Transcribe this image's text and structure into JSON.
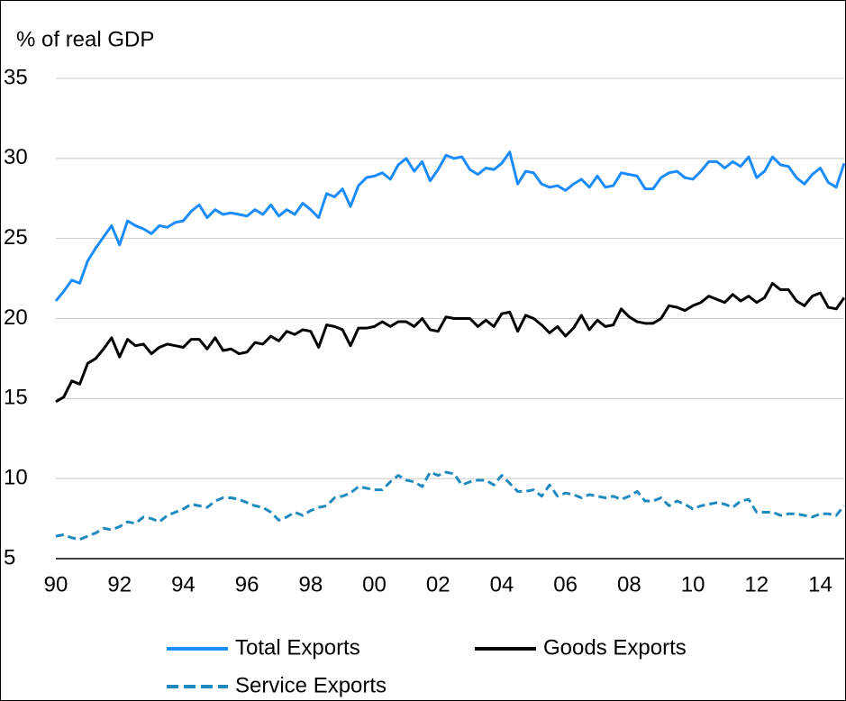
{
  "chart_data": {
    "type": "line",
    "y_axis_title": "% of real GDP",
    "categories": [
      "90",
      null,
      null,
      null,
      null,
      null,
      null,
      null,
      "92",
      null,
      null,
      null,
      null,
      null,
      null,
      null,
      "94",
      null,
      null,
      null,
      null,
      null,
      null,
      null,
      "96",
      null,
      null,
      null,
      null,
      null,
      null,
      null,
      "98",
      null,
      null,
      null,
      null,
      null,
      null,
      null,
      "00",
      null,
      null,
      null,
      null,
      null,
      null,
      null,
      "02",
      null,
      null,
      null,
      null,
      null,
      null,
      null,
      "04",
      null,
      null,
      null,
      null,
      null,
      null,
      null,
      "06",
      null,
      null,
      null,
      null,
      null,
      null,
      null,
      "08",
      null,
      null,
      null,
      null,
      null,
      null,
      null,
      "10",
      null,
      null,
      null,
      null,
      null,
      null,
      null,
      "12",
      null,
      null,
      null,
      null,
      null,
      null,
      null,
      "14",
      null,
      null,
      null
    ],
    "series": [
      {
        "name": "Total Exports",
        "color": "#1a8cff",
        "dashed": false,
        "values": [
          21.1,
          21.7,
          22.4,
          22.2,
          23.6,
          24.4,
          25.1,
          25.8,
          24.6,
          26.1,
          25.8,
          25.6,
          25.3,
          25.8,
          25.7,
          26.0,
          26.1,
          26.7,
          27.1,
          26.3,
          26.8,
          26.5,
          26.6,
          26.5,
          26.4,
          26.8,
          26.5,
          27.1,
          26.4,
          26.8,
          26.5,
          27.2,
          26.8,
          26.3,
          27.8,
          27.6,
          28.1,
          27.0,
          28.3,
          28.8,
          28.9,
          29.1,
          28.7,
          29.6,
          30.0,
          29.2,
          29.8,
          28.6,
          29.3,
          30.2,
          30.0,
          30.1,
          29.3,
          29.0,
          29.4,
          29.3,
          29.7,
          30.4,
          28.4,
          29.2,
          29.1,
          28.4,
          28.2,
          28.3,
          28.0,
          28.4,
          28.7,
          28.2,
          28.9,
          28.2,
          28.3,
          29.1,
          29.0,
          28.9,
          28.1,
          28.1,
          28.8,
          29.1,
          29.2,
          28.8,
          28.7,
          29.2,
          29.8,
          29.8,
          29.4,
          29.8,
          29.5,
          30.1,
          28.8,
          29.2,
          30.1,
          29.6,
          29.5,
          28.8,
          28.4,
          29.0,
          29.4,
          28.5,
          28.2,
          29.7
        ]
      },
      {
        "name": "Goods Exports",
        "color": "#000000",
        "dashed": false,
        "values": [
          14.8,
          15.1,
          16.1,
          15.9,
          17.2,
          17.5,
          18.1,
          18.8,
          17.6,
          18.7,
          18.3,
          18.4,
          17.8,
          18.2,
          18.4,
          18.3,
          18.2,
          18.7,
          18.7,
          18.1,
          18.8,
          18.0,
          18.1,
          17.8,
          17.9,
          18.5,
          18.4,
          18.9,
          18.6,
          19.2,
          19.0,
          19.3,
          19.2,
          18.2,
          19.6,
          19.5,
          19.3,
          18.3,
          19.4,
          19.4,
          19.5,
          19.8,
          19.5,
          19.8,
          19.8,
          19.5,
          20.0,
          19.3,
          19.2,
          20.1,
          20.0,
          20.0,
          20.0,
          19.5,
          19.9,
          19.5,
          20.3,
          20.4,
          19.2,
          20.2,
          20.0,
          19.6,
          19.1,
          19.5,
          18.9,
          19.4,
          20.2,
          19.3,
          19.9,
          19.5,
          19.6,
          20.6,
          20.1,
          19.8,
          19.7,
          19.7,
          20.0,
          20.8,
          20.7,
          20.5,
          20.8,
          21.0,
          21.4,
          21.2,
          21.0,
          21.5,
          21.1,
          21.4,
          21.0,
          21.3,
          22.2,
          21.8,
          21.8,
          21.1,
          20.8,
          21.4,
          21.6,
          20.7,
          20.6,
          21.3
        ]
      },
      {
        "name": "Service Exports",
        "color": "#1f8ac0",
        "dashed": true,
        "values": [
          6.4,
          6.5,
          6.3,
          6.2,
          6.4,
          6.6,
          6.9,
          6.8,
          7.0,
          7.3,
          7.2,
          7.6,
          7.5,
          7.3,
          7.7,
          7.9,
          8.1,
          8.4,
          8.3,
          8.2,
          8.6,
          8.8,
          8.8,
          8.7,
          8.5,
          8.3,
          8.2,
          7.9,
          7.4,
          7.6,
          7.9,
          7.7,
          8.0,
          8.2,
          8.3,
          8.8,
          8.9,
          9.1,
          9.5,
          9.4,
          9.3,
          9.3,
          9.8,
          10.2,
          9.9,
          9.8,
          9.5,
          10.4,
          10.2,
          10.4,
          10.3,
          9.6,
          9.8,
          9.9,
          9.9,
          9.6,
          10.2,
          9.7,
          9.2,
          9.2,
          9.3,
          8.9,
          9.6,
          8.9,
          9.1,
          9.0,
          8.8,
          9.0,
          8.9,
          8.8,
          8.9,
          8.7,
          8.9,
          9.2,
          8.6,
          8.6,
          8.8,
          8.3,
          8.6,
          8.4,
          8.1,
          8.3,
          8.4,
          8.5,
          8.4,
          8.2,
          8.6,
          8.7,
          7.9,
          7.9,
          7.9,
          7.7,
          7.8,
          7.8,
          7.7,
          7.6,
          7.8,
          7.8,
          7.7,
          8.3
        ]
      }
    ],
    "ylim": [
      5,
      35
    ],
    "yticks": [
      5,
      10,
      15,
      20,
      25,
      30,
      35
    ],
    "grid": true,
    "legend": "bottom"
  }
}
